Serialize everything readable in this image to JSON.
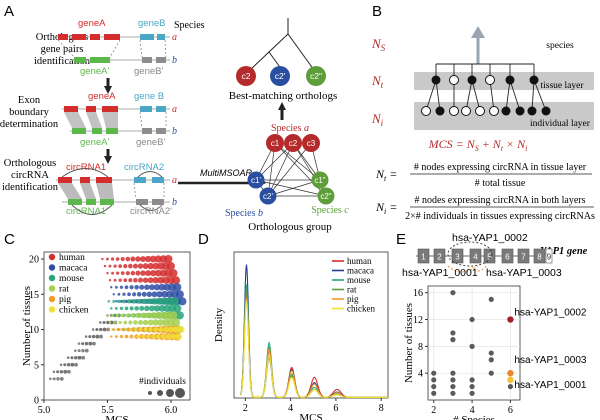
{
  "panels": {
    "A": {
      "letter": "A",
      "species_header": "Species",
      "stage1_line1": "Orthologous",
      "stage1_line2": "gene pairs",
      "stage1_line3": "identification",
      "stage2_line1": "Exon",
      "stage2_line2": "boundary",
      "stage2_line3": "determination",
      "stage3_line1": "Orthologous",
      "stage3_line2": "circRNA",
      "stage3_line3": "identification",
      "geneA": "geneA",
      "geneB": "geneB",
      "geneA_prime": "geneA'",
      "geneB_prime": "geneB'",
      "geneA_2": "geneA",
      "geneB_2": "gene B",
      "geneA_prime_2": "geneA'",
      "geneB_prime_2": "geneB'",
      "circRNA1": "circRNA1",
      "circRNA2": "circRNA2",
      "circRNA1_prime": "circRNA1'",
      "circRNA2_prime": "circRNA2'",
      "sp_a1": "a",
      "sp_b1": "b",
      "sp_a2": "a",
      "sp_b2": "b",
      "sp_a3": "a",
      "sp_b3": "b",
      "tool": "MultiMSOAR",
      "best_matching": "Best-matching orthologs",
      "orthologous_group": "Orthologous group",
      "species_a": "Species",
      "species_a_letter": "a",
      "species_b": "Species",
      "species_b_letter": "b",
      "species_c": "Species",
      "species_c_letter": "c",
      "node_c1": "c1",
      "node_c2": "c2",
      "node_c3": "c3",
      "node_c1p": "c1'",
      "node_c2p": "c2'",
      "node_c1pp": "c1\"",
      "node_c2pp": "c2\"",
      "tree_c2": "c2",
      "tree_c2p": "c2'",
      "tree_c2pp": "c2\""
    },
    "B": {
      "letter": "B",
      "ns": "N",
      "ns_sub": "S",
      "nt": "N",
      "nt_sub": "t",
      "ni": "N",
      "ni_sub": "i",
      "species_label": "species",
      "tissue_layer": "tissue layer",
      "individual_layer": "individual layer",
      "mcs_formula": "MCS = N",
      "mcs_formula_mid": " + N",
      "mcs_formula_end": " × N",
      "mcs_s": "S",
      "mcs_t": "t",
      "mcs_i": "i",
      "nt_eq_lhs": "N",
      "nt_eq_sub": "t",
      "nt_numerator": "# nodes expressing circRNA in tissue layer",
      "nt_denominator": "# total tissue",
      "ni_eq_lhs": "N",
      "ni_eq_sub": "i",
      "ni_numerator": "# nodes expressing circRNA in both layers",
      "ni_denominator": "2×# individuals in tissues expressing circRNAs"
    },
    "C": {
      "letter": "C"
    },
    "D": {
      "letter": "D"
    },
    "E": {
      "letter": "E",
      "gene_title": "YAP1 gene",
      "iso_0002": "hsa-YAP1_0002",
      "iso_0001": "hsa-YAP1_0001",
      "iso_0003": "hsa-YAP1_0003",
      "exons": [
        "1",
        "2",
        "3",
        "4",
        "5",
        "6",
        "7",
        "8",
        "9"
      ]
    }
  },
  "colors": {
    "red": "#d42d2d",
    "green": "#5cb84a",
    "blue": "#4aa7c7",
    "grey": "#8c8c8c",
    "dark_red": "#b52b2b",
    "navy": "#1f3e8e",
    "pale_green": "#5d9e3a"
  },
  "chart_data": [
    {
      "type": "scatter",
      "panel": "C",
      "title": "",
      "xlabel": "MCS",
      "ylabel": "Number of tissues",
      "xlim": [
        5.0,
        6.15
      ],
      "ylim": [
        0,
        21
      ],
      "xticks": [
        "5.0",
        "5.5",
        "6.0"
      ],
      "yticks": [
        "0",
        "5",
        "10",
        "15",
        "20"
      ],
      "size_legend_title": "#individuals",
      "series": [
        {
          "name": "human",
          "color": "#d42d2d",
          "ys": [
            17,
            18,
            19,
            20
          ],
          "xstart": 5.58
        },
        {
          "name": "macaca",
          "color": "#2f4fa3",
          "ys": [
            14,
            15,
            16
          ],
          "xstart": 5.55
        },
        {
          "name": "mouse",
          "color": "#26a47a",
          "ys": [
            12,
            13,
            14
          ],
          "xstart": 5.47
        },
        {
          "name": "rat",
          "color": "#a6cf4d",
          "ys": [
            10,
            11,
            12
          ],
          "xstart": 5.4
        },
        {
          "name": "pig",
          "color": "#f19a2a",
          "ys": [
            9,
            10
          ],
          "xstart": 5.35
        },
        {
          "name": "chicken",
          "color": "#f0e234",
          "ys": [
            9,
            10
          ],
          "xstart": 5.5
        }
      ],
      "grey_diagonal": {
        "x_from": 5.05,
        "x_to": 5.5,
        "y_from": 3,
        "y_to": 12
      }
    },
    {
      "type": "line",
      "panel": "D",
      "title": "",
      "xlabel": "MCS",
      "ylabel": "Density",
      "xlim": [
        1.5,
        8.3
      ],
      "ylim": [
        0,
        2.2
      ],
      "xticks": [
        "2",
        "4",
        "6",
        "8"
      ],
      "peaks_x": [
        2.05,
        3.05,
        4.05,
        5.05,
        6.05
      ],
      "series": [
        {
          "name": "human",
          "color": "#d42d2d",
          "peaks": [
            1.55,
            0.7,
            0.45,
            0.3,
            0.12
          ]
        },
        {
          "name": "macaca",
          "color": "#1f3e8e",
          "peaks": [
            2.0,
            0.6,
            0.42,
            0.22,
            0.08
          ]
        },
        {
          "name": "mouse",
          "color": "#26a47a",
          "peaks": [
            1.7,
            0.82,
            0.35,
            0.15,
            0.05
          ]
        },
        {
          "name": "rat",
          "color": "#5d9e3a",
          "peaks": [
            1.6,
            0.75,
            0.32,
            0.12,
            0.04
          ]
        },
        {
          "name": "pig",
          "color": "#f19a2a",
          "peaks": [
            1.5,
            0.72,
            0.4,
            0.2,
            0.07
          ]
        },
        {
          "name": "chicken",
          "color": "#f0e234",
          "peaks": [
            1.45,
            0.62,
            0.3,
            0.12,
            0.04
          ]
        }
      ]
    },
    {
      "type": "scatter",
      "panel": "E",
      "title": "",
      "xlabel": "# Species",
      "ylabel": "Number of tissues",
      "xlim": [
        1.7,
        6.5
      ],
      "ylim": [
        0,
        17
      ],
      "xticks": [
        "2",
        "4",
        "6"
      ],
      "yticks": [
        "4",
        "8",
        "12",
        "16"
      ],
      "points": [
        {
          "x": 2,
          "y": 1
        },
        {
          "x": 2,
          "y": 2
        },
        {
          "x": 2,
          "y": 3
        },
        {
          "x": 2,
          "y": 4
        },
        {
          "x": 3,
          "y": 1
        },
        {
          "x": 3,
          "y": 2
        },
        {
          "x": 3,
          "y": 3
        },
        {
          "x": 3,
          "y": 4
        },
        {
          "x": 3,
          "y": 9
        },
        {
          "x": 3,
          "y": 10
        },
        {
          "x": 3,
          "y": 16
        },
        {
          "x": 4,
          "y": 1
        },
        {
          "x": 4,
          "y": 2
        },
        {
          "x": 4,
          "y": 3
        },
        {
          "x": 4,
          "y": 8
        },
        {
          "x": 4,
          "y": 12
        },
        {
          "x": 5,
          "y": 4
        },
        {
          "x": 5,
          "y": 6
        },
        {
          "x": 5,
          "y": 7
        },
        {
          "x": 5,
          "y": 15
        },
        {
          "x": 6,
          "y": 2
        }
      ],
      "highlighted": [
        {
          "x": 6,
          "y": 12,
          "color": "#a3222a",
          "label": "hsa-YAP1_0002"
        },
        {
          "x": 6,
          "y": 4,
          "color": "#e8892b",
          "label": "hsa-YAP1_0003"
        },
        {
          "x": 6,
          "y": 3,
          "color": "#f1c232",
          "label": "hsa-YAP1_0001"
        }
      ]
    }
  ]
}
